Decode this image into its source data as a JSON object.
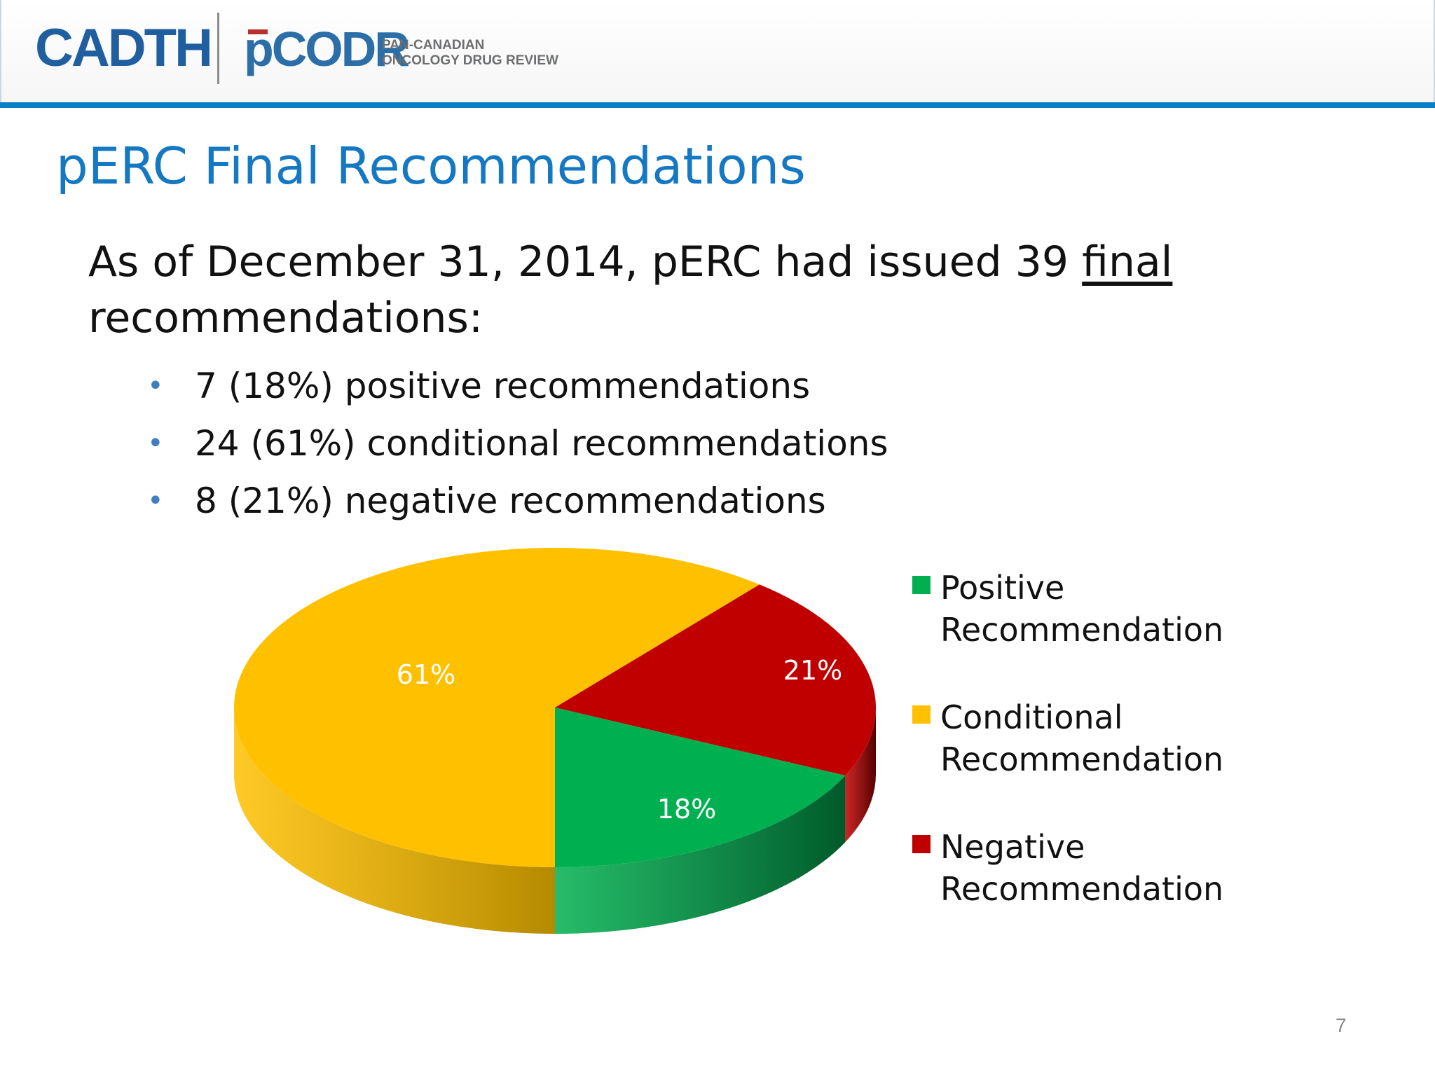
{
  "header": {
    "logo_cadth": "CADTH",
    "logo_pcodr": "pCODR",
    "tagline_line1": "PAN-CANADIAN",
    "tagline_line2": "ONCOLOGY DRUG REVIEW"
  },
  "slide": {
    "title": "pERC Final Recommendations",
    "intro_before": "As of December 31, 2014, pERC had issued 39 ",
    "intro_underlined": "final",
    "intro_after": " recommendations:",
    "bullets": [
      "7 (18%) positive recommendations",
      "24 (61%) conditional recommendations",
      "8 (21%) negative recommendations"
    ],
    "page_number": "7"
  },
  "chart_data": {
    "type": "pie",
    "style": "3d",
    "legend_position": "right",
    "slices": [
      {
        "name": "Positive Recommendation",
        "legend_lines": [
          "Positive",
          "Recommendation"
        ],
        "value": 18,
        "label": "18%",
        "color": "#00b050",
        "side_color": "#005a2a",
        "label_color": "#ffffff"
      },
      {
        "name": "Conditional Recommendation",
        "legend_lines": [
          "Conditional",
          "Recommendation"
        ],
        "value": 61,
        "label": "61%",
        "color": "#ffc000",
        "side_color": "#b58a00",
        "label_color": "#ffffff"
      },
      {
        "name": "Negative Recommendation",
        "legend_lines": [
          "Negative",
          "Recommendation"
        ],
        "value": 21,
        "label": "21%",
        "color": "#c00000",
        "side_color": "#550000",
        "label_color": "#ffffff"
      }
    ]
  }
}
